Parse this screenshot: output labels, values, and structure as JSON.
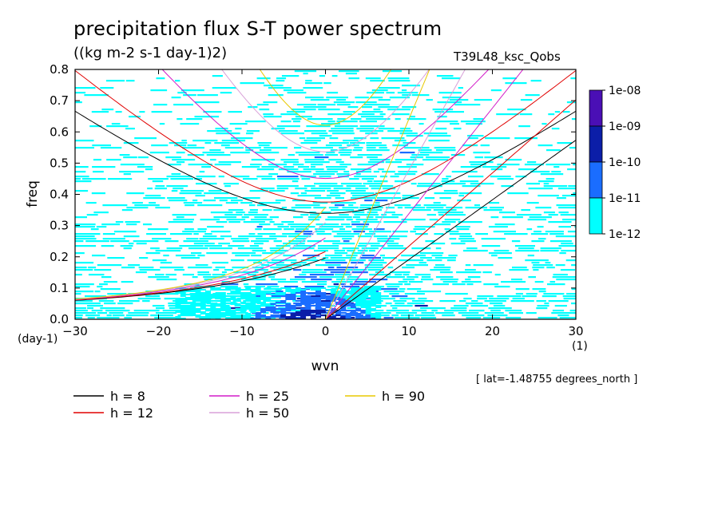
{
  "chart_data": {
    "type": "heatmap",
    "title": "precipitation flux S-T power spectrum",
    "units": "((kg m-2 s-1 day-1)2)",
    "experiment": "T39L48_ksc_Qobs",
    "xlabel": "wvn",
    "ylabel": "freq",
    "x_unit_label": "(1)",
    "y_unit_label": "(day-1)",
    "xlim": [
      -30,
      30
    ],
    "ylim": [
      0.0,
      0.8
    ],
    "x_ticks": [
      "-30",
      "-20",
      "-10",
      "0",
      "10",
      "20",
      "30"
    ],
    "y_ticks": [
      "0.0",
      "0.1",
      "0.2",
      "0.3",
      "0.4",
      "0.5",
      "0.6",
      "0.7",
      "0.8"
    ],
    "colorbar": {
      "labels": [
        "1e-08",
        "1e-09",
        "1e-10",
        "1e-11",
        "1e-12"
      ],
      "colors": [
        "#4a0fb5",
        "#0b1ea8",
        "#1a6dff",
        "#00ffff"
      ]
    },
    "legend": [
      {
        "label": "h =  8",
        "color": "#000000"
      },
      {
        "label": "h = 12",
        "color": "#e00000"
      },
      {
        "label": "h = 25",
        "color": "#d21cc8"
      },
      {
        "label": "h = 50",
        "color": "#d8a0d8"
      },
      {
        "label": "h = 90",
        "color": "#e8c800"
      }
    ],
    "equivalent_depths": [
      8,
      12,
      25,
      50,
      90
    ],
    "annotation": "[ lat=-1.48755 degrees_north ]"
  }
}
